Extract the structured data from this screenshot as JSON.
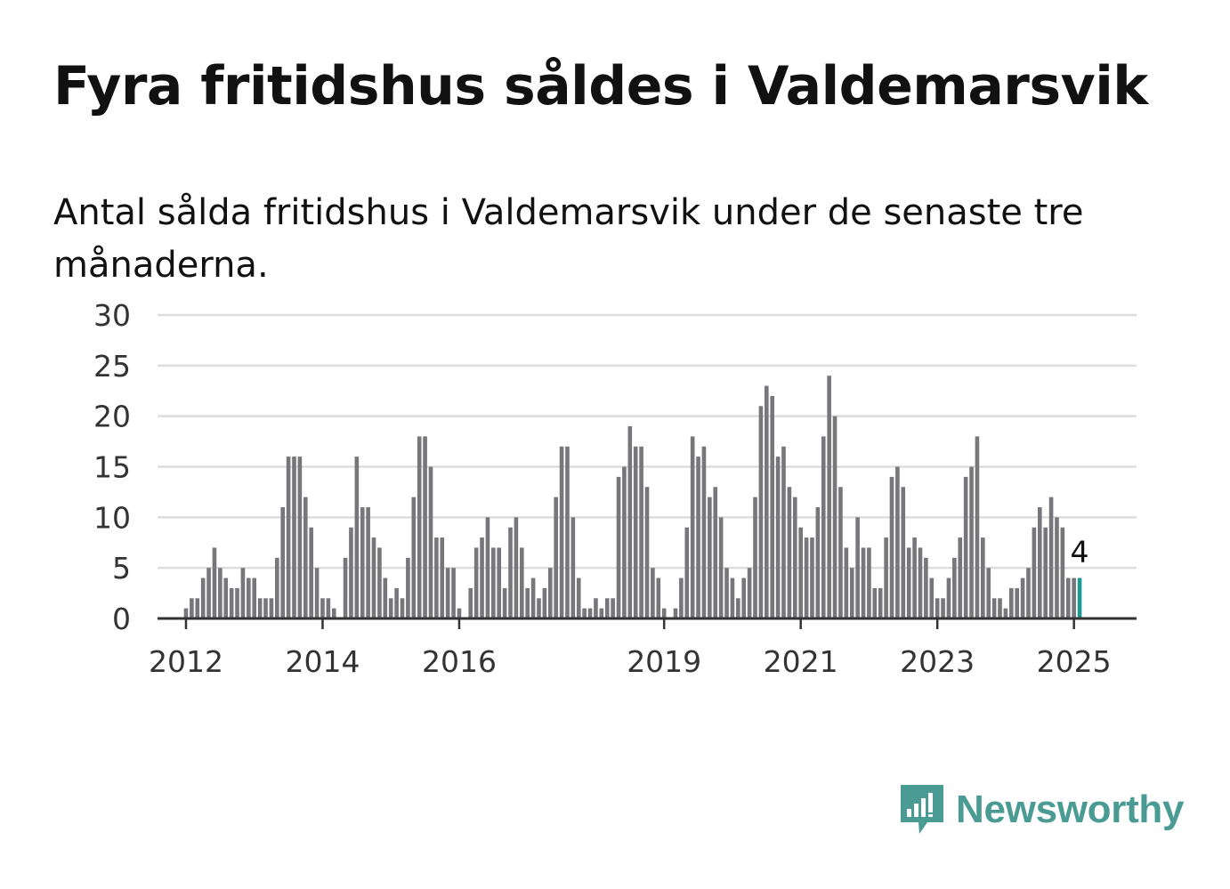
{
  "title": "Fyra fritidshus såldes i Valdemarsvik",
  "subtitle": "Antal sålda fritidshus i Valdemarsvik under de senaste tre månaderna.",
  "brand": {
    "name": "Newsworthy",
    "icon": "newsworthy-logo-icon",
    "color": "#4b9b95"
  },
  "colors": {
    "bar": "#77767b",
    "highlight": "#1a9a94",
    "grid": "#dddddd",
    "axis": "#333333"
  },
  "chart_data": {
    "type": "bar",
    "ylim": [
      0,
      30
    ],
    "y_ticks": [
      0,
      5,
      10,
      15,
      20,
      25,
      30
    ],
    "x_start": "2011-08",
    "x_end": "2025-12",
    "x_ticks": [
      {
        "label": "2012",
        "date": "2012-01"
      },
      {
        "label": "2014",
        "date": "2014-01"
      },
      {
        "label": "2016",
        "date": "2016-01"
      },
      {
        "label": "2019",
        "date": "2019-01"
      },
      {
        "label": "2021",
        "date": "2021-01"
      },
      {
        "label": "2023",
        "date": "2023-01"
      },
      {
        "label": "2025",
        "date": "2025-01"
      }
    ],
    "first_month": "2012-01",
    "values": [
      1,
      2,
      2,
      4,
      5,
      7,
      5,
      4,
      3,
      3,
      5,
      4,
      4,
      2,
      2,
      2,
      6,
      11,
      16,
      16,
      16,
      12,
      9,
      5,
      2,
      2,
      1,
      0,
      6,
      9,
      16,
      11,
      11,
      8,
      7,
      4,
      2,
      3,
      2,
      6,
      12,
      18,
      18,
      15,
      8,
      8,
      5,
      5,
      1,
      0,
      3,
      7,
      8,
      10,
      7,
      7,
      3,
      9,
      10,
      7,
      3,
      4,
      2,
      3,
      5,
      12,
      17,
      17,
      10,
      4,
      1,
      1,
      2,
      1,
      2,
      2,
      14,
      15,
      19,
      17,
      17,
      13,
      5,
      4,
      1,
      0,
      1,
      4,
      9,
      18,
      16,
      17,
      12,
      13,
      10,
      5,
      4,
      2,
      4,
      5,
      12,
      21,
      23,
      22,
      16,
      17,
      13,
      12,
      9,
      8,
      8,
      11,
      18,
      24,
      20,
      13,
      7,
      5,
      10,
      7,
      7,
      3,
      3,
      8,
      14,
      15,
      13,
      7,
      8,
      7,
      6,
      4,
      2,
      2,
      4,
      6,
      8,
      14,
      15,
      18,
      8,
      5,
      2,
      2,
      1,
      3,
      3,
      4,
      5,
      9,
      11,
      9,
      12,
      10,
      9,
      4,
      4,
      4
    ],
    "highlight_last": 1,
    "annotation": "4"
  }
}
